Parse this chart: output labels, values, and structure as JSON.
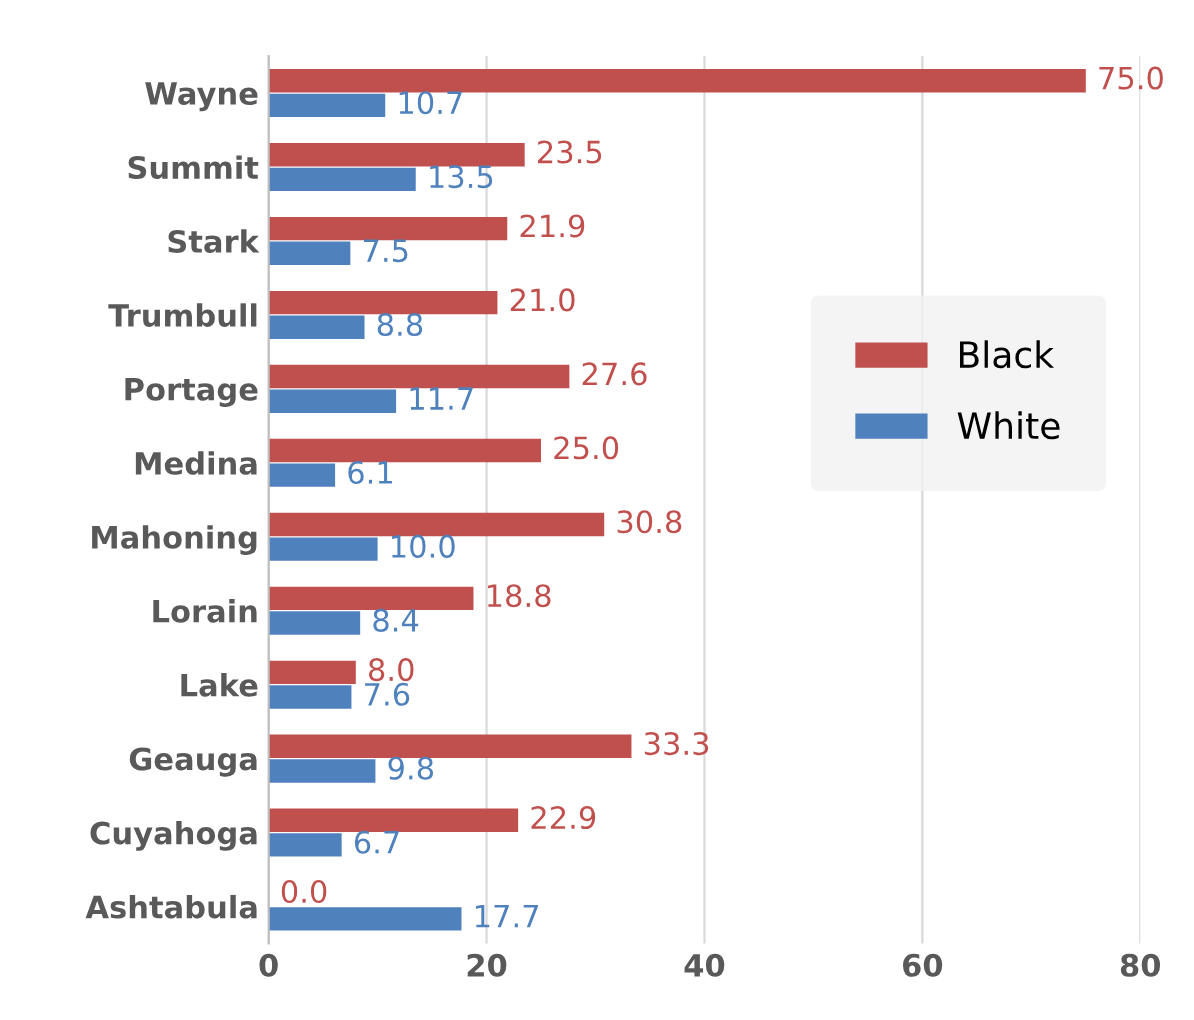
{
  "chart_data": {
    "type": "bar",
    "orientation": "horizontal",
    "categories": [
      "Wayne",
      "Summit",
      "Stark",
      "Trumbull",
      "Portage",
      "Medina",
      "Mahoning",
      "Lorain",
      "Lake",
      "Geauga",
      "Cuyahoga",
      "Ashtabula"
    ],
    "series": [
      {
        "name": "Black",
        "color": "#c0504d",
        "values": [
          75.0,
          23.5,
          21.9,
          21.0,
          27.6,
          25.0,
          30.8,
          18.8,
          8.0,
          33.3,
          22.9,
          0.0
        ],
        "value_labels": [
          "75.0",
          "23.5",
          "21.9",
          "21.0",
          "27.6",
          "25.0",
          "30.8",
          "18.8",
          "8.0",
          "33.3",
          "22.9",
          "0.0"
        ]
      },
      {
        "name": "White",
        "color": "#4f81bd",
        "values": [
          10.7,
          13.5,
          7.5,
          8.8,
          11.7,
          6.1,
          10.0,
          8.4,
          7.6,
          9.8,
          6.7,
          17.7
        ],
        "value_labels": [
          "10.7",
          "13.5",
          "7.5",
          "8.8",
          "11.7",
          "6.1",
          "10.0",
          "8.4",
          "7.6",
          "9.8",
          "6.7",
          "17.7"
        ]
      }
    ],
    "xlim": [
      0,
      80
    ],
    "xticks": [
      0,
      20,
      40,
      60,
      80
    ],
    "grid": "x",
    "legend": "right"
  }
}
